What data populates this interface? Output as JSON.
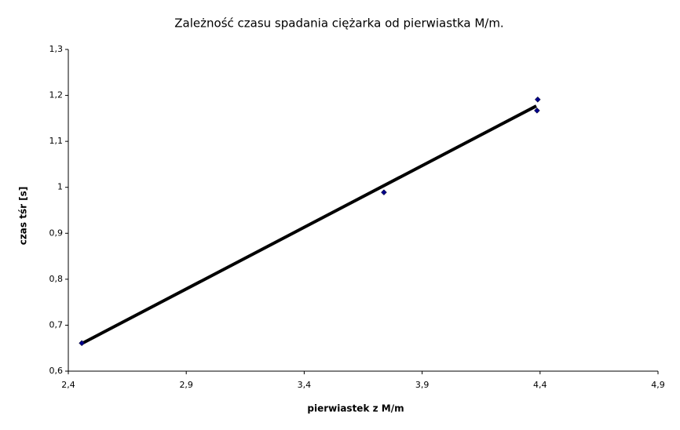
{
  "chart_data": {
    "type": "scatter",
    "title": "Zależność czasu spadania ciężarka od pierwiastka M/m.",
    "x_label": "pierwiastek z M/m",
    "y_label": "czas tśr [s]",
    "series": [
      {
        "color": "#00008b",
        "x": [
          2.457,
          3.738,
          4.39,
          4.387
        ],
        "values": [
          0.661,
          0.989,
          1.191,
          1.167
        ]
      }
    ],
    "trendline": {
      "color": "#000000",
      "x": [
        2.457,
        4.384
      ],
      "values": [
        0.66,
        1.177
      ]
    },
    "xlim": [
      2.4,
      4.9
    ],
    "ylim": [
      0.6,
      1.3
    ],
    "xticks": [
      {
        "value": 2.4,
        "label": "2,4"
      },
      {
        "value": 2.9,
        "label": "2,9"
      },
      {
        "value": 3.4,
        "label": "3,4"
      },
      {
        "value": 3.9,
        "label": "3,9"
      },
      {
        "value": 4.4,
        "label": "4,4"
      },
      {
        "value": 4.9,
        "label": "4,9"
      }
    ],
    "yticks": [
      {
        "value": 0.6,
        "label": "0,6"
      },
      {
        "value": 0.7,
        "label": "0,7"
      },
      {
        "value": 0.8,
        "label": "0,8"
      },
      {
        "value": 0.9,
        "label": "0,9"
      },
      1,
      {
        "value": 1.1,
        "label": "1,1"
      },
      {
        "value": 1.2,
        "label": "1,2"
      },
      {
        "value": 1.3,
        "label": "1,3"
      }
    ],
    "grid": false
  }
}
